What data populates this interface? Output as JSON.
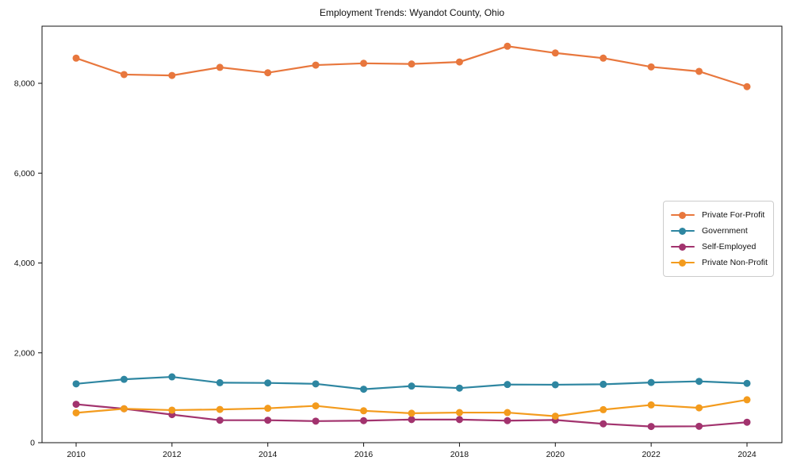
{
  "chart_data": {
    "type": "line",
    "title": "Employment Trends: Wyandot County, Ohio",
    "xlabel": "",
    "ylabel": "",
    "grid": false,
    "legend_position": "center right",
    "x": [
      2010,
      2011,
      2012,
      2013,
      2014,
      2015,
      2016,
      2017,
      2018,
      2019,
      2020,
      2021,
      2022,
      2023,
      2024
    ],
    "x_tick_years": [
      2010,
      2012,
      2014,
      2016,
      2018,
      2020,
      2022,
      2024
    ],
    "x_tick_labels": [
      "2010",
      "2012",
      "2014",
      "2016",
      "2018",
      "2020",
      "2022",
      "2024"
    ],
    "y_ticks": [
      0,
      2000,
      4000,
      6000,
      8000
    ],
    "y_tick_labels": [
      "0",
      "2,000",
      "4,000",
      "6,000",
      "8,000"
    ],
    "ylim": [
      0,
      9270
    ],
    "series": [
      {
        "name": "Private For-Profit",
        "color": "#e8773d",
        "values": [
          8560,
          8195,
          8175,
          8355,
          8235,
          8405,
          8445,
          8430,
          8475,
          8825,
          8675,
          8560,
          8365,
          8265,
          7925
        ]
      },
      {
        "name": "Government",
        "color": "#2e86a1",
        "values": [
          1310,
          1410,
          1465,
          1335,
          1330,
          1310,
          1190,
          1260,
          1215,
          1295,
          1290,
          1300,
          1340,
          1365,
          1320
        ]
      },
      {
        "name": "Self-Employed",
        "color": "#a2336e",
        "values": [
          855,
          755,
          625,
          500,
          500,
          480,
          490,
          515,
          515,
          490,
          505,
          420,
          360,
          365,
          455
        ]
      },
      {
        "name": "Private Non-Profit",
        "color": "#f39b1d",
        "values": [
          665,
          755,
          725,
          740,
          765,
          820,
          710,
          655,
          670,
          670,
          590,
          735,
          840,
          775,
          955
        ]
      }
    ]
  }
}
